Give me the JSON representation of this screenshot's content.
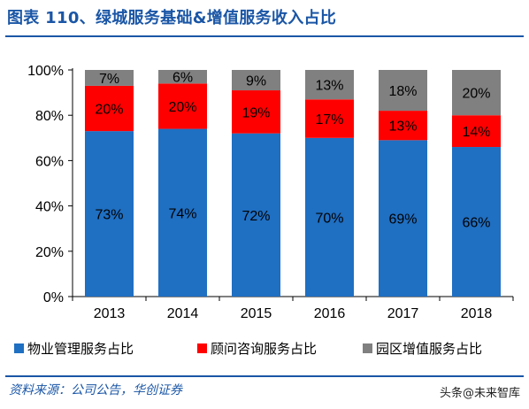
{
  "header": {
    "title": "图表 110、绿城服务基础&增值服务收入占比"
  },
  "footer": {
    "source": "资料来源：公司公告，华创证券",
    "watermark": "头条@未来智库"
  },
  "colors": {
    "property": "#1f6fc2",
    "consulting": "#ff0000",
    "value_added": "#808080",
    "accent": "#1a56a6"
  },
  "chart_data": {
    "type": "bar",
    "stacked": true,
    "categories": [
      "2013",
      "2014",
      "2015",
      "2016",
      "2017",
      "2018"
    ],
    "series": [
      {
        "name": "物业管理服务占比",
        "values": [
          73,
          74,
          72,
          70,
          69,
          66
        ],
        "labels": [
          "73%",
          "74%",
          "72%",
          "70%",
          "69%",
          "66%"
        ],
        "color": "#1f6fc2"
      },
      {
        "name": "顾问咨询服务占比",
        "values": [
          20,
          20,
          19,
          17,
          13,
          14
        ],
        "labels": [
          "20%",
          "20%",
          "19%",
          "17%",
          "13%",
          "14%"
        ],
        "color": "#ff0000"
      },
      {
        "name": "园区增值服务占比",
        "values": [
          7,
          6,
          9,
          13,
          18,
          20
        ],
        "labels": [
          "7%",
          "6%",
          "9%",
          "13%",
          "18%",
          "20%"
        ],
        "color": "#808080"
      }
    ],
    "yticks": [
      "0%",
      "20%",
      "40%",
      "60%",
      "80%",
      "100%"
    ],
    "ylim": [
      0,
      100
    ],
    "legend_position": "bottom",
    "grid": false
  }
}
